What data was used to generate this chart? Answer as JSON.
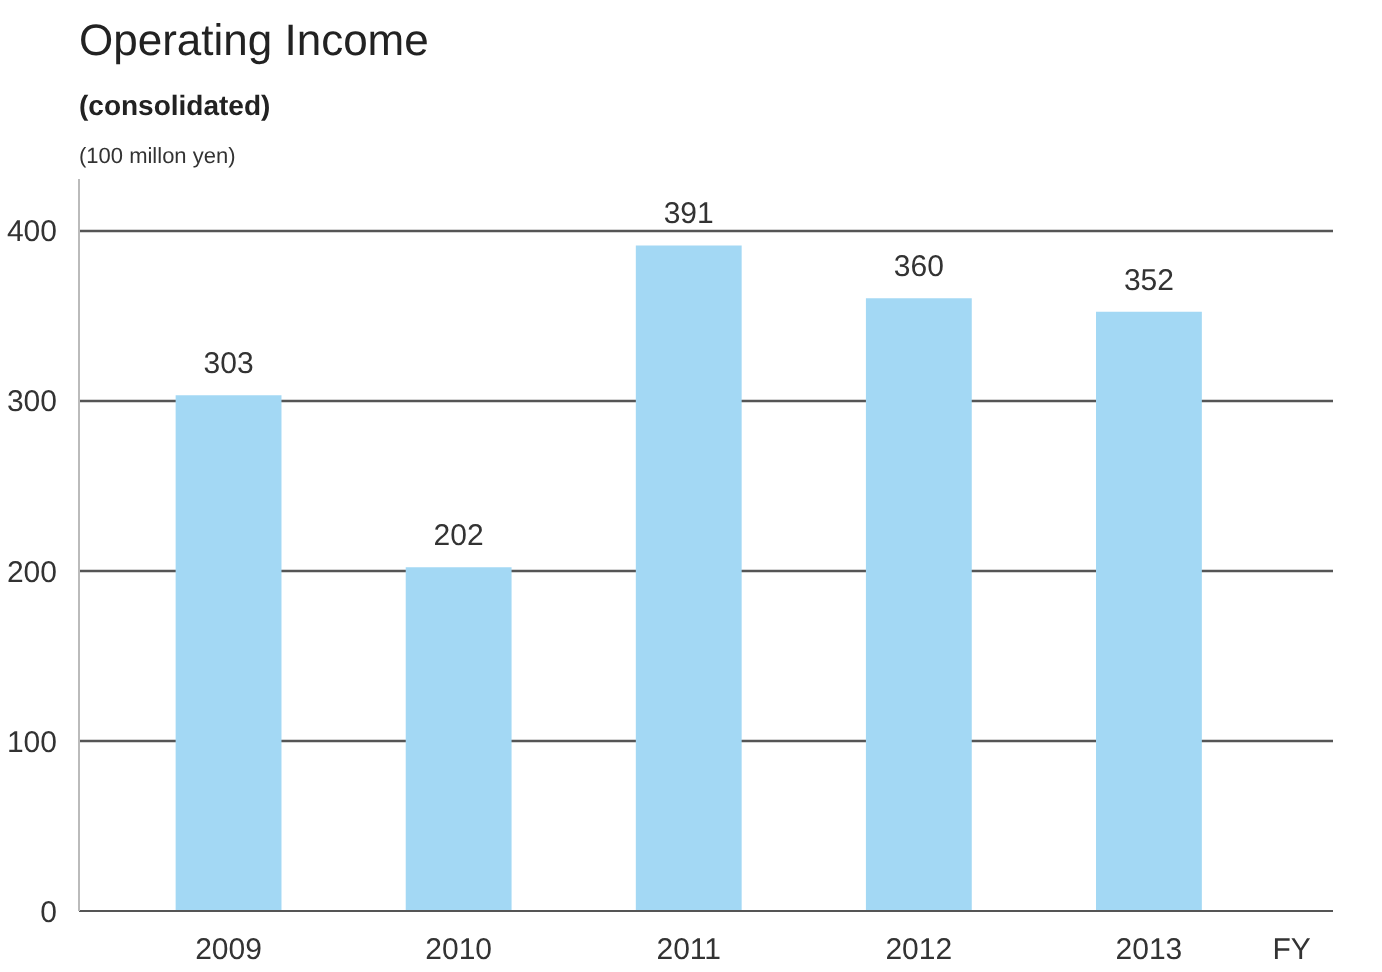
{
  "chart_data": {
    "type": "bar",
    "title": "Operating Income",
    "subtitle": "(consolidated)",
    "ylabel": "(100 millon yen)",
    "xlabel": "FY",
    "categories": [
      "2009",
      "2010",
      "2011",
      "2012",
      "2013"
    ],
    "values": [
      303,
      202,
      391,
      360,
      352
    ],
    "color": "#a3d8f4",
    "ylim": [
      0,
      430
    ],
    "yticks": [
      0,
      100,
      200,
      300,
      400
    ],
    "grid": "y",
    "data_labels": true
  }
}
